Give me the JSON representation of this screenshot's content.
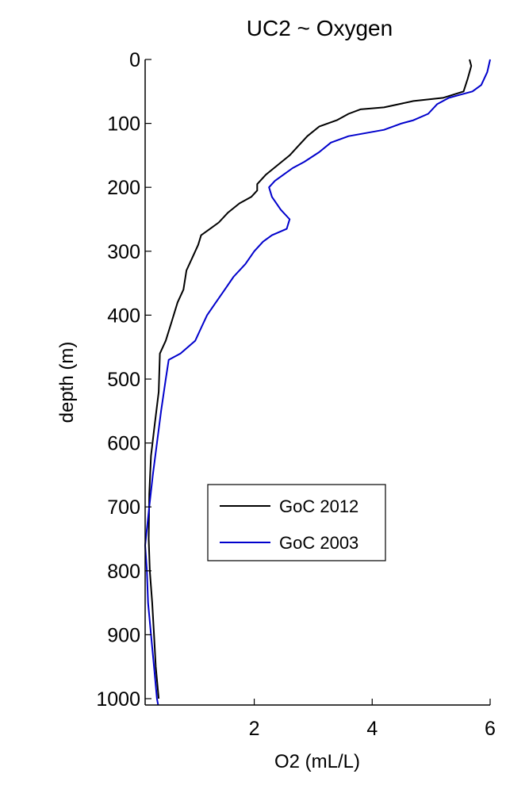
{
  "chart_data": {
    "type": "line",
    "title": "UC2 ~ Oxygen",
    "xlabel": "O2 (mL/L)",
    "ylabel": "depth (m)",
    "xlim": [
      0.15,
      6.0
    ],
    "ylim": [
      0,
      1010
    ],
    "y_inverted": true,
    "xticks": [
      2,
      4,
      6
    ],
    "yticks": [
      0,
      100,
      200,
      300,
      400,
      500,
      600,
      700,
      800,
      900,
      1000
    ],
    "grid": false,
    "legend_position": "lower-center",
    "series": [
      {
        "name": "GoC 2012",
        "color": "#000000",
        "points": [
          [
            5.65,
            0
          ],
          [
            5.68,
            10
          ],
          [
            5.62,
            30
          ],
          [
            5.55,
            50
          ],
          [
            5.2,
            60
          ],
          [
            4.7,
            65
          ],
          [
            4.2,
            75
          ],
          [
            3.8,
            78
          ],
          [
            3.6,
            85
          ],
          [
            3.4,
            95
          ],
          [
            3.1,
            105
          ],
          [
            2.9,
            120
          ],
          [
            2.75,
            135
          ],
          [
            2.6,
            150
          ],
          [
            2.4,
            165
          ],
          [
            2.2,
            180
          ],
          [
            2.05,
            195
          ],
          [
            2.05,
            205
          ],
          [
            1.95,
            215
          ],
          [
            1.75,
            225
          ],
          [
            1.55,
            240
          ],
          [
            1.4,
            255
          ],
          [
            1.25,
            265
          ],
          [
            1.1,
            275
          ],
          [
            1.05,
            290
          ],
          [
            0.95,
            310
          ],
          [
            0.85,
            330
          ],
          [
            0.8,
            360
          ],
          [
            0.7,
            380
          ],
          [
            0.6,
            410
          ],
          [
            0.5,
            440
          ],
          [
            0.4,
            460
          ],
          [
            0.38,
            520
          ],
          [
            0.3,
            580
          ],
          [
            0.25,
            620
          ],
          [
            0.22,
            680
          ],
          [
            0.21,
            750
          ],
          [
            0.23,
            800
          ],
          [
            0.27,
            850
          ],
          [
            0.3,
            900
          ],
          [
            0.33,
            950
          ],
          [
            0.38,
            1000
          ]
        ]
      },
      {
        "name": "GoC 2003",
        "color": "#0000cc",
        "points": [
          [
            6.0,
            0
          ],
          [
            5.95,
            20
          ],
          [
            5.85,
            40
          ],
          [
            5.7,
            50
          ],
          [
            5.5,
            55
          ],
          [
            5.3,
            60
          ],
          [
            5.1,
            70
          ],
          [
            4.95,
            85
          ],
          [
            4.7,
            95
          ],
          [
            4.5,
            100
          ],
          [
            4.2,
            110
          ],
          [
            3.9,
            115
          ],
          [
            3.6,
            120
          ],
          [
            3.3,
            130
          ],
          [
            3.1,
            145
          ],
          [
            2.85,
            160
          ],
          [
            2.65,
            170
          ],
          [
            2.5,
            180
          ],
          [
            2.35,
            190
          ],
          [
            2.25,
            200
          ],
          [
            2.3,
            215
          ],
          [
            2.45,
            235
          ],
          [
            2.6,
            250
          ],
          [
            2.55,
            265
          ],
          [
            2.3,
            275
          ],
          [
            2.15,
            285
          ],
          [
            2.0,
            300
          ],
          [
            1.85,
            320
          ],
          [
            1.65,
            340
          ],
          [
            1.5,
            360
          ],
          [
            1.35,
            380
          ],
          [
            1.2,
            400
          ],
          [
            1.1,
            420
          ],
          [
            1.0,
            440
          ],
          [
            0.75,
            460
          ],
          [
            0.55,
            470
          ],
          [
            0.5,
            500
          ],
          [
            0.42,
            550
          ],
          [
            0.35,
            600
          ],
          [
            0.28,
            650
          ],
          [
            0.22,
            700
          ],
          [
            0.15,
            760
          ],
          [
            0.18,
            800
          ],
          [
            0.2,
            850
          ],
          [
            0.25,
            900
          ],
          [
            0.3,
            950
          ],
          [
            0.35,
            1000
          ],
          [
            0.37,
            1010
          ]
        ]
      }
    ]
  }
}
